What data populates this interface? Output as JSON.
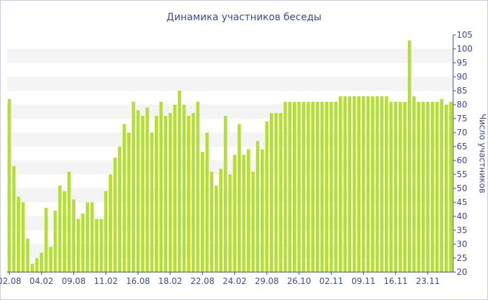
{
  "chart_data": {
    "type": "bar",
    "title": "Динамика участников беседы",
    "ylabel": "Число участников",
    "xlabel": "",
    "ylim": [
      20,
      105
    ],
    "y_ticks": [
      20,
      25,
      30,
      35,
      40,
      45,
      50,
      55,
      60,
      65,
      70,
      75,
      80,
      85,
      90,
      95,
      100,
      105
    ],
    "y_axis_side": "right",
    "banded_background": true,
    "bar_color": "#b5df33",
    "x_tick_labels": [
      "02.08",
      "04.02",
      "09.08",
      "11.02",
      "16.08",
      "18.02",
      "22.08",
      "24.02",
      "29.08",
      "26.10",
      "02.11",
      "09.11",
      "16.11",
      "23.11"
    ],
    "x_tick_positions": [
      0,
      7,
      14,
      21,
      28,
      35,
      42,
      49,
      56,
      63,
      70,
      77,
      84,
      91
    ],
    "values": [
      82,
      58,
      47,
      45,
      32,
      23,
      25,
      27,
      43,
      29,
      42,
      51,
      49,
      56,
      46,
      39,
      41,
      45,
      45,
      39,
      39,
      49,
      55,
      61,
      65,
      73,
      70,
      81,
      78,
      76,
      79,
      70,
      76,
      81,
      76,
      77,
      80,
      85,
      80,
      76,
      77,
      81,
      63,
      70,
      56,
      51,
      57,
      76,
      55,
      62,
      73,
      62,
      64,
      56,
      67,
      64,
      74,
      77,
      77,
      77,
      81,
      81,
      81,
      81,
      81,
      81,
      81,
      81,
      81,
      81,
      81,
      81,
      83,
      83,
      83,
      83,
      83,
      83,
      83,
      83,
      83,
      83,
      83,
      81,
      81,
      81,
      81,
      103,
      83,
      81,
      81,
      81,
      81,
      81,
      82,
      80,
      81
    ]
  }
}
